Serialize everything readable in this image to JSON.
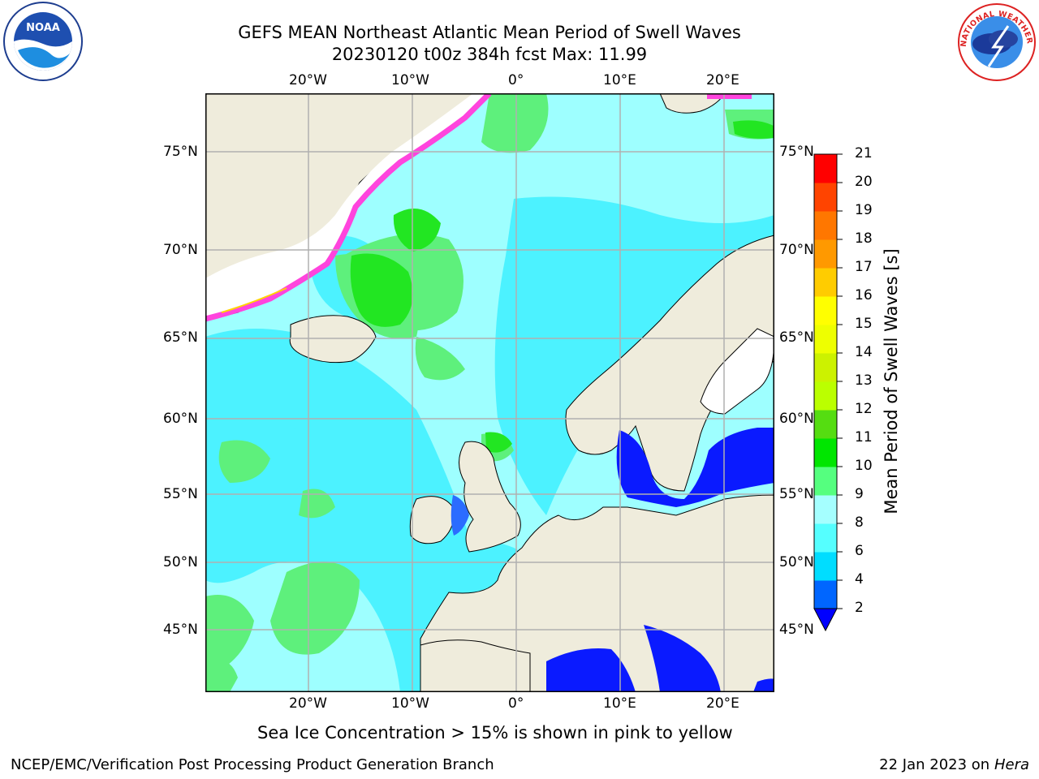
{
  "header": {
    "title_line1": "GEFS MEAN Northeast Atlantic Mean Period of Swell Waves",
    "title_line2": "20230120 t00z 384h fcst   Max: 11.99"
  },
  "logos": {
    "left_text": "NOAA",
    "right_text": "NATIONAL WEATHER SERVICE"
  },
  "map": {
    "lon_labels": [
      "20°W",
      "10°W",
      "0°",
      "10°E",
      "20°E"
    ],
    "lat_labels": [
      "75°N",
      "70°N",
      "65°N",
      "60°N",
      "55°N",
      "50°N",
      "45°N"
    ],
    "colors": {
      "land": "#efecdc",
      "ocean_light": "#9effff",
      "ocean_cyan": "#4cf2ff",
      "ocean_green": "#5ef07c",
      "ocean_green2": "#22e622",
      "shallow_blue": "#0a1aff",
      "ice": "#ff44dd"
    }
  },
  "colorbar": {
    "label": "Mean Period of Swell Waves [s]",
    "ticks": [
      "2",
      "4",
      "6",
      "8",
      "9",
      "10",
      "11",
      "12",
      "13",
      "14",
      "15",
      "16",
      "17",
      "18",
      "19",
      "20",
      "21"
    ],
    "colors": [
      "#0066ff",
      "#00ddff",
      "#55ffff",
      "#a5ffff",
      "#55ff7f",
      "#00e600",
      "#55dd11",
      "#bbff00",
      "#ccf200",
      "#eeff00",
      "#ffff00",
      "#ffcc00",
      "#ff9900",
      "#ff7700",
      "#ff4400",
      "#ff0000"
    ],
    "under_color": "#0000ff"
  },
  "footer": {
    "ice_note": "Sea Ice Concentration > 15% is shown in pink to yellow",
    "credit": "NCEP/EMC/Verification Post Processing Product Generation Branch",
    "date": "22 Jan 2023 on",
    "host": "Hera"
  }
}
